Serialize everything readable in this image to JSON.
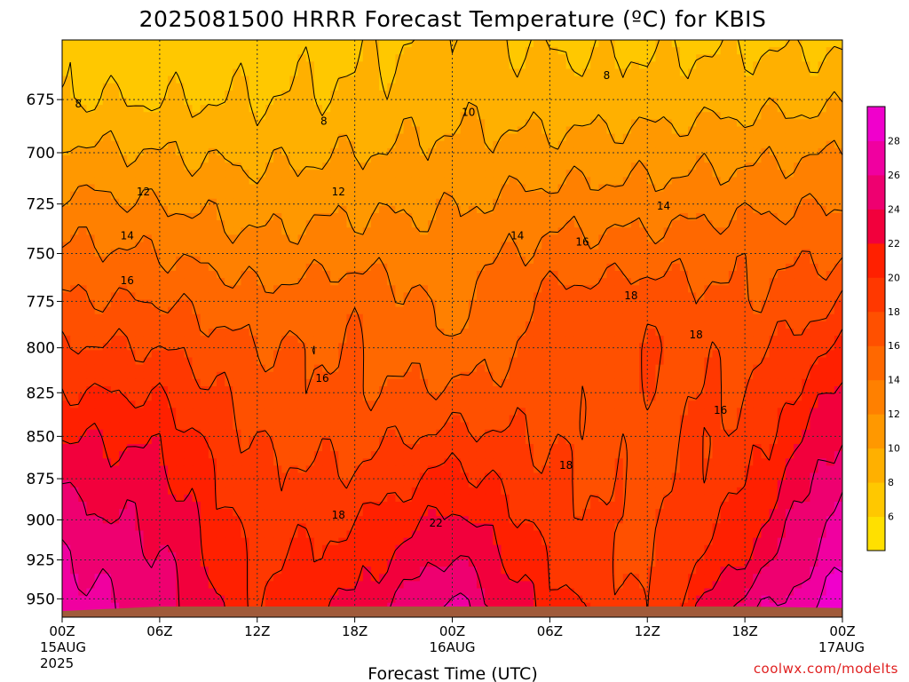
{
  "title": "2025081500 HRRR Forecast Temperature (ºC) for KBIS",
  "xlabel": "Forecast Time (UTC)",
  "credit": "coolwx.com/modelts",
  "chart_data": {
    "type": "heatmap",
    "title": "2025081500 HRRR Forecast Temperature (ºC) for KBIS",
    "xlabel": "Forecast Time (UTC)",
    "ylabel": "",
    "x_hours": [
      0,
      48
    ],
    "y_pressure_range_hPa": [
      962,
      648
    ],
    "y_scale": "pressure (log)",
    "grid": true,
    "legend": "colorbar-right",
    "x_ticks": [
      {
        "h": 0,
        "lines": [
          "00Z",
          "15AUG",
          "2025"
        ]
      },
      {
        "h": 6,
        "lines": [
          "06Z"
        ]
      },
      {
        "h": 12,
        "lines": [
          "12Z"
        ]
      },
      {
        "h": 18,
        "lines": [
          "18Z"
        ]
      },
      {
        "h": 24,
        "lines": [
          "00Z",
          "16AUG"
        ]
      },
      {
        "h": 30,
        "lines": [
          "06Z"
        ]
      },
      {
        "h": 36,
        "lines": [
          "12Z"
        ]
      },
      {
        "h": 42,
        "lines": [
          "18Z"
        ]
      },
      {
        "h": 48,
        "lines": [
          "00Z",
          "17AUG"
        ]
      }
    ],
    "y_ticks": [
      675,
      700,
      725,
      750,
      775,
      800,
      825,
      850,
      875,
      900,
      925,
      950
    ],
    "colorbar": {
      "levels": [
        4,
        6,
        8,
        10,
        12,
        14,
        16,
        18,
        20,
        22,
        24,
        26,
        28,
        30
      ],
      "labels": [
        "6",
        "8",
        "10",
        "12",
        "14",
        "16",
        "18",
        "20",
        "22",
        "24",
        "26",
        "28"
      ],
      "colors": [
        "#ffe000",
        "#ffc800",
        "#ffb000",
        "#ff9800",
        "#ff8000",
        "#ff6800",
        "#ff5000",
        "#ff3800",
        "#ff2000",
        "#f2003c",
        "#ee0070",
        "#f000a0",
        "#f000cc"
      ]
    },
    "temperature_columns": [
      {
        "h": 0,
        "p": [
          650,
          675,
          700,
          725,
          750,
          775,
          800,
          825,
          850,
          875,
          900,
          925,
          950
        ],
        "t": [
          7.2,
          8.0,
          10.5,
          12.6,
          14.6,
          16.2,
          18.3,
          20.1,
          22.0,
          23.6,
          24.8,
          26.0,
          27.0
        ]
      },
      {
        "h": 6,
        "p": [
          650,
          675,
          700,
          725,
          750,
          775,
          800,
          825,
          850,
          875,
          900,
          925,
          950
        ],
        "t": [
          6.8,
          7.9,
          10.0,
          12.0,
          14.0,
          16.0,
          18.0,
          19.8,
          21.5,
          22.6,
          23.4,
          24.3,
          25.0
        ]
      },
      {
        "h": 12,
        "p": [
          650,
          675,
          700,
          725,
          750,
          775,
          800,
          825,
          850,
          875,
          900,
          925,
          950
        ],
        "t": [
          7.0,
          8.0,
          9.5,
          11.0,
          12.8,
          14.6,
          16.0,
          17.0,
          17.8,
          18.4,
          19.0,
          19.6,
          20.0
        ]
      },
      {
        "h": 18,
        "p": [
          650,
          675,
          700,
          725,
          750,
          775,
          800,
          825,
          850,
          875,
          900,
          925,
          950
        ],
        "t": [
          7.5,
          8.4,
          10.0,
          11.6,
          13.2,
          15.6,
          16.0,
          16.2,
          17.2,
          18.4,
          19.8,
          21.0,
          22.2
        ]
      },
      {
        "h": 24,
        "p": [
          650,
          675,
          700,
          725,
          750,
          775,
          800,
          825,
          850,
          875,
          900,
          925,
          950
        ],
        "t": [
          8.6,
          9.4,
          10.6,
          11.8,
          12.8,
          13.4,
          14.4,
          16.4,
          18.6,
          20.8,
          22.6,
          24.4,
          26.2
        ]
      },
      {
        "h": 30,
        "p": [
          650,
          675,
          700,
          725,
          750,
          775,
          800,
          825,
          850,
          875,
          900,
          925,
          950
        ],
        "t": [
          7.8,
          8.8,
          10.8,
          12.8,
          14.8,
          16.6,
          16.8,
          17.2,
          17.8,
          18.4,
          19.2,
          20.0,
          20.8
        ]
      },
      {
        "h": 36,
        "p": [
          650,
          675,
          700,
          725,
          750,
          775,
          800,
          825,
          850,
          875,
          900,
          925,
          950
        ],
        "t": [
          7.8,
          9.0,
          11.0,
          13.0,
          15.0,
          17.4,
          18.0,
          17.6,
          17.4,
          17.2,
          17.2,
          17.4,
          17.8
        ]
      },
      {
        "h": 42,
        "p": [
          650,
          675,
          700,
          725,
          750,
          775,
          800,
          825,
          850,
          875,
          900,
          925,
          950
        ],
        "t": [
          7.8,
          9.4,
          11.4,
          13.6,
          15.4,
          16.0,
          17.2,
          18.0,
          18.6,
          19.6,
          20.8,
          22.2,
          24.6
        ]
      },
      {
        "h": 48,
        "p": [
          650,
          675,
          700,
          725,
          750,
          775,
          800,
          825,
          850,
          875,
          900,
          925,
          950
        ],
        "t": [
          7.6,
          9.6,
          12.0,
          14.0,
          15.6,
          18.0,
          20.2,
          22.4,
          24.2,
          25.8,
          27.0,
          27.8,
          28.6
        ]
      }
    ],
    "contour_labels": [
      {
        "h": 1.0,
        "p": 677,
        "text": "8"
      },
      {
        "h": 16.1,
        "p": 685,
        "text": "8"
      },
      {
        "h": 33.5,
        "p": 664,
        "text": "8"
      },
      {
        "h": 25.0,
        "p": 681,
        "text": "10"
      },
      {
        "h": 5.0,
        "p": 719,
        "text": "12"
      },
      {
        "h": 17.0,
        "p": 719,
        "text": "12"
      },
      {
        "h": 4.0,
        "p": 741,
        "text": "14"
      },
      {
        "h": 28.0,
        "p": 741,
        "text": "14"
      },
      {
        "h": 37.0,
        "p": 726,
        "text": "14"
      },
      {
        "h": 4.0,
        "p": 764,
        "text": "16"
      },
      {
        "h": 32.0,
        "p": 744,
        "text": "16"
      },
      {
        "h": 16.0,
        "p": 817,
        "text": "16"
      },
      {
        "h": 40.5,
        "p": 835,
        "text": "16"
      },
      {
        "h": 35.0,
        "p": 772,
        "text": "18"
      },
      {
        "h": 39.0,
        "p": 793,
        "text": "18"
      },
      {
        "h": 31.0,
        "p": 867,
        "text": "18"
      },
      {
        "h": 17.0,
        "p": 897,
        "text": "18"
      },
      {
        "h": 23.0,
        "p": 902,
        "text": "22"
      }
    ],
    "terrain": {
      "color": "#a05a3a",
      "surface_pressure_hPa": [
        958,
        955,
        955,
        955,
        955,
        955,
        955,
        955,
        956
      ]
    }
  }
}
